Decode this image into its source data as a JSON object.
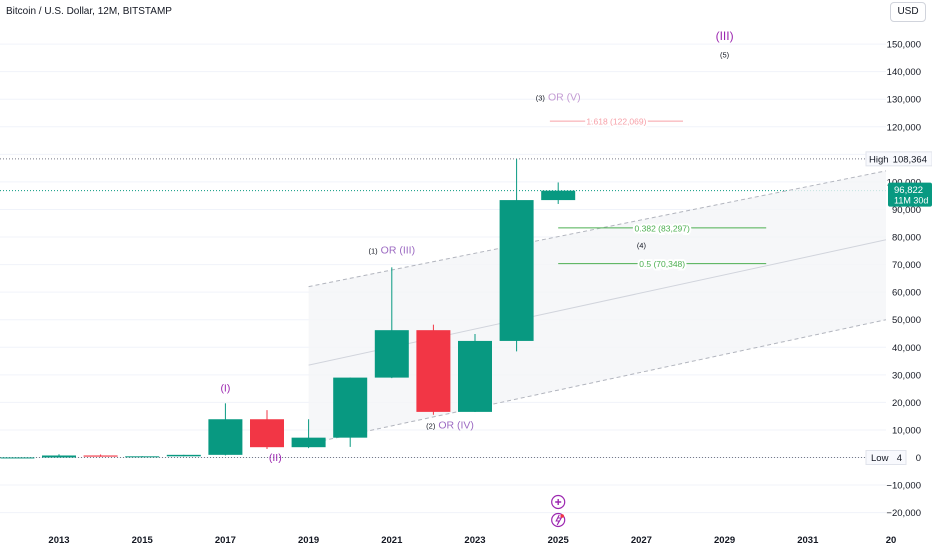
{
  "header": {
    "title": "Bitcoin / U.S. Dollar, 12M, BITSTAMP",
    "currency": "USD"
  },
  "colors": {
    "up": "#089981",
    "down": "#f23645",
    "wave": "#9c27b0",
    "fib_high": "#f7a0a8",
    "fib_low": "#4caf50",
    "channel": "#b2b5be"
  },
  "chart_data": {
    "type": "candlestick",
    "x_ticks": [
      "2013",
      "2015",
      "2017",
      "2019",
      "2021",
      "2023",
      "2025",
      "2027",
      "2029",
      "2031",
      "20"
    ],
    "y_ticks": [
      "150,000",
      "140,000",
      "130,000",
      "120,000",
      "110,000",
      "100,000",
      "90,000",
      "80,000",
      "70,000",
      "60,000",
      "50,000",
      "40,000",
      "30,000",
      "20,000",
      "10,000",
      "0",
      "−10,000",
      "−20,000"
    ],
    "y_range": [
      -25000,
      155000
    ],
    "candles": [
      {
        "year": 2012,
        "open": 5,
        "high": 14,
        "low": 4,
        "close": 13
      },
      {
        "year": 2013,
        "open": 13,
        "high": 1163,
        "low": 13,
        "close": 732
      },
      {
        "year": 2014,
        "open": 732,
        "high": 1100,
        "low": 280,
        "close": 318
      },
      {
        "year": 2015,
        "open": 318,
        "high": 500,
        "low": 150,
        "close": 430
      },
      {
        "year": 2016,
        "open": 430,
        "high": 980,
        "low": 350,
        "close": 963
      },
      {
        "year": 2017,
        "open": 963,
        "high": 19666,
        "low": 750,
        "close": 13880
      },
      {
        "year": 2018,
        "open": 13880,
        "high": 17200,
        "low": 3100,
        "close": 3740
      },
      {
        "year": 2019,
        "open": 3740,
        "high": 13880,
        "low": 3400,
        "close": 7200
      },
      {
        "year": 2020,
        "open": 7200,
        "high": 29000,
        "low": 3850,
        "close": 28990
      },
      {
        "year": 2021,
        "open": 28990,
        "high": 69000,
        "low": 28800,
        "close": 46200
      },
      {
        "year": 2022,
        "open": 46200,
        "high": 48200,
        "low": 15500,
        "close": 16550
      },
      {
        "year": 2023,
        "open": 16550,
        "high": 44800,
        "low": 16500,
        "close": 42300
      },
      {
        "year": 2024,
        "open": 42300,
        "high": 108364,
        "low": 38500,
        "close": 93400
      },
      {
        "year": 2025,
        "open": 93400,
        "high": 99800,
        "low": 92000,
        "close": 96822
      }
    ],
    "high": {
      "label": "High",
      "value": "108,364"
    },
    "low": {
      "label": "Low",
      "value": "4"
    },
    "last_price": {
      "value": "96,822",
      "countdown": "11M 30d"
    },
    "fib_levels": [
      {
        "label": "1.618 (122,069)",
        "value": 122069
      },
      {
        "label": "0.382 (83,297)",
        "value": 83297
      },
      {
        "label": "0.5 (70,348)",
        "value": 70348
      }
    ],
    "wave_labels": [
      {
        "prefix": "",
        "text": "(III)"
      },
      {
        "prefix": "",
        "text": "(5)"
      },
      {
        "prefix": "(3)",
        "text": "OR (V)"
      },
      {
        "prefix": "(1)",
        "text": "OR (III)"
      },
      {
        "prefix": "(2)",
        "text": "OR (IV)"
      },
      {
        "prefix": "",
        "text": "(4)"
      },
      {
        "prefix": "",
        "text": "(I)"
      },
      {
        "prefix": "",
        "text": "(II)"
      }
    ]
  }
}
